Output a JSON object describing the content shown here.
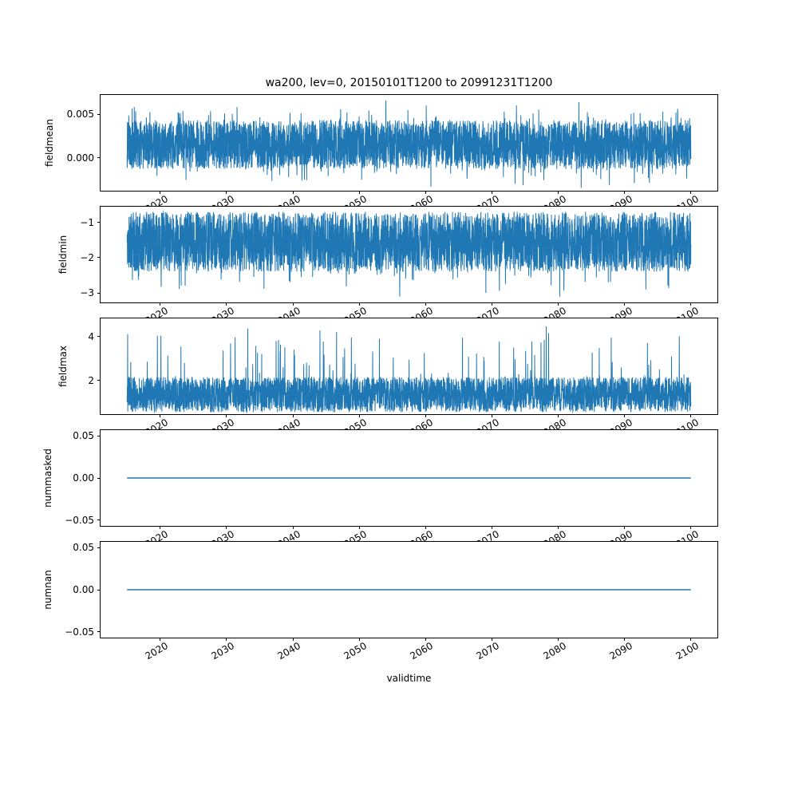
{
  "figure": {
    "title": "wa200, lev=0, 20150101T1200 to 20991231T1200",
    "background": "#ffffff",
    "axes_color": "#000000",
    "line_color": "#1f77b4"
  },
  "x_axis": {
    "label": "validtime",
    "lim": [
      2011,
      2104
    ],
    "ticks": [
      2020,
      2030,
      2040,
      2050,
      2060,
      2070,
      2080,
      2090,
      2100
    ],
    "data_range": [
      2015,
      2100
    ],
    "tick_rotation_deg": 30
  },
  "chart_data": [
    {
      "type": "line",
      "ylabel": "fieldmean",
      "ylim": [
        -0.0038,
        0.0072
      ],
      "yticks": [
        {
          "value": 0.005,
          "label": "0.005"
        },
        {
          "value": 0.0,
          "label": "0.000"
        }
      ],
      "series": {
        "kind": "noise",
        "seed": 11,
        "points": 4000,
        "base": 0.0015,
        "amp": 0.0028,
        "spike_prob": 0.12,
        "spike_scale": 0.0024,
        "spike_sign": 0
      }
    },
    {
      "type": "line",
      "ylabel": "fieldmin",
      "ylim": [
        -3.27,
        -0.556
      ],
      "yticks": [
        {
          "value": -1,
          "label": "−1"
        },
        {
          "value": -2,
          "label": "−2"
        },
        {
          "value": -3,
          "label": "−3"
        }
      ],
      "series": {
        "kind": "noise",
        "seed": 22,
        "points": 4000,
        "base": -1.55,
        "amp": 0.85,
        "spike_prob": 0.05,
        "spike_scale": 0.8,
        "spike_sign": -1
      }
    },
    {
      "type": "line",
      "ylabel": "fieldmax",
      "ylim": [
        0.46,
        4.82
      ],
      "yticks": [
        {
          "value": 4,
          "label": "4"
        },
        {
          "value": 2,
          "label": "2"
        }
      ],
      "series": {
        "kind": "noise",
        "seed": 33,
        "points": 4000,
        "base": 1.35,
        "amp": 0.8,
        "spike_prob": 0.035,
        "spike_scale": 2.6,
        "spike_sign": 1
      }
    },
    {
      "type": "line",
      "ylabel": "nummasked",
      "ylim": [
        -0.057,
        0.057
      ],
      "yticks": [
        {
          "value": 0.05,
          "label": "0.05"
        },
        {
          "value": 0.0,
          "label": "0.00"
        },
        {
          "value": -0.05,
          "label": "−0.05"
        }
      ],
      "series": {
        "kind": "flat",
        "value": 0
      }
    },
    {
      "type": "line",
      "ylabel": "numnan",
      "ylim": [
        -0.057,
        0.057
      ],
      "yticks": [
        {
          "value": 0.05,
          "label": "0.05"
        },
        {
          "value": 0.0,
          "label": "0.00"
        },
        {
          "value": -0.05,
          "label": "−0.05"
        }
      ],
      "series": {
        "kind": "flat",
        "value": 0
      }
    }
  ]
}
